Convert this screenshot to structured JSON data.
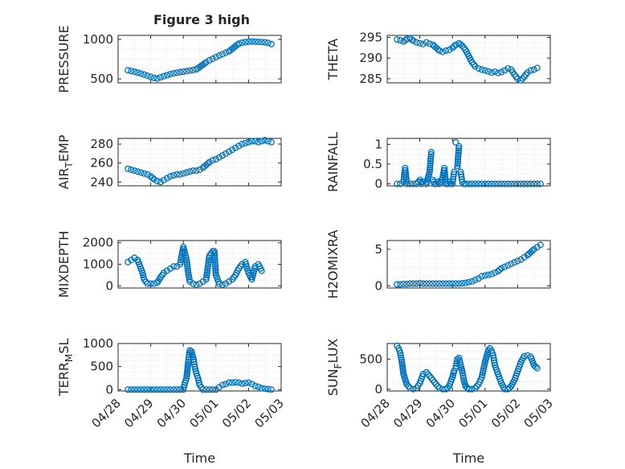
{
  "figure": {
    "title": "Figure 3 high"
  },
  "colors": {
    "marker": "#0072BD",
    "axis": "#262626",
    "grid": "#c8c8c8",
    "minor_grid": "#dedede",
    "background": "#ffffff"
  },
  "chart_data": [
    {
      "id": "pressure",
      "type": "scatter",
      "title": "Figure 3 high",
      "ylabel": "PRESSURE",
      "xlabel": "",
      "x_range": [
        "04/28",
        "05/03"
      ],
      "ylim": [
        450,
        1050
      ],
      "yticks": [
        500,
        1000
      ],
      "xtick_labels": [
        "04/28",
        "04/29",
        "04/30",
        "05/01",
        "05/02",
        "05/03"
      ],
      "show_xtick_labels": false,
      "grid": true,
      "series": [
        {
          "marker": "open-circle",
          "x": [
            0.3,
            0.4,
            0.5,
            0.6,
            0.7,
            0.8,
            0.9,
            1.0,
            1.1,
            1.2,
            1.3,
            1.4,
            1.5,
            1.6,
            1.7,
            1.8,
            1.9,
            2.0,
            2.1,
            2.2,
            2.3,
            2.4,
            2.5,
            2.6,
            2.7,
            2.8,
            2.9,
            3.0,
            3.1,
            3.2,
            3.3,
            3.4,
            3.5,
            3.6,
            3.7,
            3.8,
            3.9,
            4.0,
            4.1,
            4.2,
            4.3,
            4.4,
            4.5,
            4.6,
            4.7
          ],
          "y": [
            610,
            600,
            590,
            580,
            568,
            555,
            540,
            525,
            512,
            505,
            520,
            535,
            548,
            560,
            570,
            578,
            585,
            592,
            598,
            605,
            612,
            620,
            650,
            680,
            710,
            735,
            755,
            775,
            795,
            812,
            830,
            848,
            880,
            915,
            945,
            958,
            965,
            970,
            972,
            970,
            968,
            966,
            962,
            955,
            940
          ]
        }
      ]
    },
    {
      "id": "theta",
      "type": "scatter",
      "ylabel": "THETA",
      "xlabel": "",
      "ylim": [
        284,
        295.5
      ],
      "yticks": [
        285,
        290,
        295
      ],
      "show_xtick_labels": false,
      "grid": true,
      "series": [
        {
          "marker": "open-circle",
          "x": [
            0.3,
            0.4,
            0.5,
            0.6,
            0.7,
            0.8,
            0.9,
            1.0,
            1.1,
            1.2,
            1.3,
            1.4,
            1.5,
            1.6,
            1.7,
            1.8,
            1.9,
            2.0,
            2.1,
            2.2,
            2.3,
            2.4,
            2.5,
            2.6,
            2.7,
            2.8,
            2.9,
            3.0,
            3.1,
            3.2,
            3.3,
            3.4,
            3.5,
            3.6,
            3.7,
            3.8,
            3.9,
            4.0,
            4.1,
            4.2,
            4.3,
            4.4,
            4.5,
            4.6
          ],
          "y": [
            294.5,
            294.3,
            294.0,
            294.6,
            294.8,
            294.2,
            293.8,
            293.6,
            293.4,
            293.8,
            293.5,
            293.2,
            292.5,
            291.8,
            291.5,
            291.8,
            292.0,
            292.5,
            293.2,
            293.6,
            293.0,
            292.0,
            290.5,
            289.0,
            288.0,
            287.5,
            287.2,
            287.0,
            286.8,
            286.5,
            286.7,
            286.4,
            286.6,
            287.0,
            287.5,
            287.2,
            286.0,
            285.0,
            284.6,
            285.5,
            286.5,
            287.0,
            287.2,
            287.6
          ]
        }
      ]
    },
    {
      "id": "air_temp",
      "type": "scatter",
      "ylabel": "AIR_TEMP",
      "xlabel": "",
      "ylim": [
        236,
        286
      ],
      "yticks": [
        240,
        260,
        280
      ],
      "show_xtick_labels": false,
      "grid": true,
      "series": [
        {
          "marker": "open-circle",
          "x": [
            0.3,
            0.4,
            0.5,
            0.6,
            0.7,
            0.8,
            0.9,
            1.0,
            1.1,
            1.2,
            1.3,
            1.4,
            1.5,
            1.6,
            1.7,
            1.8,
            1.9,
            2.0,
            2.1,
            2.2,
            2.3,
            2.4,
            2.5,
            2.6,
            2.7,
            2.8,
            2.9,
            3.0,
            3.1,
            3.2,
            3.3,
            3.4,
            3.5,
            3.6,
            3.7,
            3.8,
            3.9,
            4.0,
            4.1,
            4.2,
            4.3,
            4.4,
            4.5,
            4.6,
            4.7
          ],
          "y": [
            254,
            253,
            252,
            251,
            250,
            249,
            248,
            246,
            243,
            241,
            240,
            242,
            244,
            246,
            247,
            248,
            248,
            249,
            250,
            251,
            252,
            252,
            253,
            255,
            258,
            261,
            263,
            264,
            266,
            268,
            270,
            272,
            274,
            276,
            278,
            280,
            281,
            282,
            283,
            283,
            282,
            283,
            284,
            283,
            282
          ]
        }
      ]
    },
    {
      "id": "rainfall",
      "type": "scatter",
      "ylabel": "RAINFALL",
      "xlabel": "",
      "ylim": [
        -0.05,
        1.15
      ],
      "yticks": [
        0,
        0.5,
        1
      ],
      "ytick_labels": [
        "0",
        "0.5",
        "1"
      ],
      "show_xtick_labels": false,
      "grid": true,
      "series": [
        {
          "marker": "open-circle",
          "x": [
            0.3,
            0.4,
            0.5,
            0.55,
            0.6,
            0.7,
            0.8,
            0.9,
            0.95,
            1.0,
            1.05,
            1.1,
            1.2,
            1.3,
            1.35,
            1.4,
            1.45,
            1.5,
            1.55,
            1.6,
            1.7,
            1.75,
            1.8,
            1.85,
            1.9,
            1.95,
            2.0,
            2.05,
            2.1,
            2.15,
            2.2,
            2.25,
            2.3,
            2.35,
            2.4,
            2.5,
            2.6,
            2.7,
            2.8,
            2.9,
            3.0,
            3.1,
            3.2,
            3.3,
            3.4,
            3.5,
            3.6,
            3.7,
            3.8,
            3.9,
            4.0,
            4.1,
            4.2,
            4.3,
            4.4,
            4.5,
            4.6,
            4.7
          ],
          "y": [
            0.0,
            0.0,
            0.05,
            0.4,
            0.0,
            0.0,
            0.0,
            0.0,
            0.05,
            0.1,
            0.0,
            0.05,
            0.0,
            0.3,
            0.8,
            0.1,
            0.0,
            0.0,
            0.05,
            0.0,
            0.15,
            0.4,
            0.0,
            0.0,
            0.05,
            0.0,
            0.0,
            0.3,
            1.05,
            0.4,
            0.95,
            0.3,
            0.05,
            0.0,
            0.0,
            0.0,
            0.0,
            0.0,
            0.0,
            0.0,
            0.0,
            0.0,
            0.0,
            0.0,
            0.0,
            0.0,
            0.0,
            0.0,
            0.0,
            0.0,
            0.0,
            0.0,
            0.0,
            0.0,
            0.0,
            0.0,
            0.0,
            0.0
          ]
        }
      ]
    },
    {
      "id": "mixdepth",
      "type": "scatter",
      "ylabel": "MIXDEPTH",
      "xlabel": "",
      "ylim": [
        -100,
        2100
      ],
      "yticks": [
        0,
        1000,
        2000
      ],
      "show_xtick_labels": false,
      "grid": true,
      "series": [
        {
          "marker": "open-circle",
          "x": [
            0.3,
            0.4,
            0.5,
            0.6,
            0.65,
            0.7,
            0.75,
            0.8,
            0.9,
            1.0,
            1.1,
            1.2,
            1.3,
            1.4,
            1.5,
            1.6,
            1.7,
            1.8,
            1.9,
            2.0,
            2.05,
            2.1,
            2.15,
            2.2,
            2.3,
            2.4,
            2.5,
            2.6,
            2.7,
            2.8,
            2.85,
            2.9,
            2.95,
            3.0,
            3.1,
            3.2,
            3.3,
            3.4,
            3.5,
            3.6,
            3.7,
            3.8,
            3.9,
            4.0,
            4.1,
            4.2,
            4.3,
            4.4
          ],
          "y": [
            1100,
            1200,
            1300,
            1200,
            1000,
            800,
            600,
            300,
            100,
            100,
            100,
            150,
            400,
            600,
            700,
            800,
            900,
            900,
            1000,
            1800,
            1500,
            1200,
            600,
            200,
            100,
            50,
            100,
            200,
            300,
            1400,
            1500,
            1600,
            1600,
            500,
            100,
            50,
            100,
            200,
            300,
            500,
            800,
            1000,
            1100,
            600,
            300,
            900,
            1000,
            700
          ]
        }
      ]
    },
    {
      "id": "h2omixra",
      "type": "scatter",
      "ylabel": "H2OMIXRA",
      "xlabel": "",
      "ylim": [
        -0.3,
        6.2
      ],
      "yticks": [
        0,
        5
      ],
      "show_xtick_labels": false,
      "grid": true,
      "series": [
        {
          "marker": "open-circle",
          "x": [
            0.3,
            0.4,
            0.5,
            0.6,
            0.7,
            0.8,
            0.9,
            1.0,
            1.1,
            1.2,
            1.3,
            1.4,
            1.5,
            1.6,
            1.7,
            1.8,
            1.9,
            2.0,
            2.1,
            2.2,
            2.3,
            2.4,
            2.5,
            2.6,
            2.7,
            2.8,
            2.9,
            3.0,
            3.1,
            3.2,
            3.3,
            3.4,
            3.5,
            3.6,
            3.7,
            3.8,
            3.9,
            4.0,
            4.1,
            4.2,
            4.3,
            4.4,
            4.5,
            4.6,
            4.7
          ],
          "y": [
            0.2,
            0.2,
            0.25,
            0.25,
            0.3,
            0.3,
            0.3,
            0.35,
            0.3,
            0.3,
            0.3,
            0.3,
            0.3,
            0.3,
            0.3,
            0.3,
            0.3,
            0.3,
            0.3,
            0.3,
            0.35,
            0.4,
            0.5,
            0.6,
            0.8,
            1.0,
            1.3,
            1.4,
            1.5,
            1.6,
            1.8,
            2.0,
            2.4,
            2.6,
            2.8,
            3.0,
            3.2,
            3.4,
            3.6,
            3.9,
            4.2,
            4.6,
            5.0,
            5.3,
            5.6
          ]
        }
      ]
    },
    {
      "id": "terr_msl",
      "type": "scatter",
      "ylabel": "TERR_MSL",
      "xlabel": "Time",
      "ylim": [
        -30,
        1000
      ],
      "yticks": [
        0,
        500,
        1000
      ],
      "xtick_labels": [
        "04/28",
        "04/29",
        "04/30",
        "05/01",
        "05/02",
        "05/03"
      ],
      "show_xtick_labels": true,
      "grid": true,
      "series": [
        {
          "marker": "open-circle",
          "x": [
            0.3,
            0.4,
            0.5,
            0.6,
            0.7,
            0.8,
            0.9,
            1.0,
            1.1,
            1.2,
            1.3,
            1.4,
            1.5,
            1.6,
            1.7,
            1.8,
            1.9,
            2.0,
            2.05,
            2.1,
            2.15,
            2.2,
            2.25,
            2.3,
            2.35,
            2.4,
            2.45,
            2.5,
            2.6,
            2.7,
            2.8,
            2.9,
            3.0,
            3.1,
            3.2,
            3.3,
            3.4,
            3.5,
            3.6,
            3.7,
            3.8,
            3.9,
            4.0,
            4.1,
            4.2,
            4.3,
            4.4,
            4.5,
            4.6,
            4.7
          ],
          "y": [
            0,
            0,
            0,
            0,
            0,
            0,
            0,
            0,
            0,
            0,
            0,
            0,
            0,
            0,
            0,
            0,
            0,
            0,
            150,
            250,
            600,
            850,
            830,
            700,
            500,
            350,
            250,
            100,
            0,
            0,
            0,
            0,
            0,
            50,
            100,
            120,
            150,
            150,
            160,
            150,
            130,
            140,
            150,
            120,
            80,
            60,
            30,
            20,
            10,
            0
          ]
        }
      ]
    },
    {
      "id": "sun_flux",
      "type": "scatter",
      "ylabel": "SUN_FLUX",
      "xlabel": "Time",
      "ylim": [
        -30,
        760
      ],
      "yticks": [
        0,
        500
      ],
      "xtick_labels": [
        "04/28",
        "04/29",
        "04/30",
        "05/01",
        "05/02",
        "05/03"
      ],
      "show_xtick_labels": true,
      "grid": true,
      "series": [
        {
          "marker": "open-circle",
          "x": [
            0.3,
            0.35,
            0.4,
            0.45,
            0.5,
            0.6,
            0.7,
            0.8,
            0.9,
            1.0,
            1.1,
            1.2,
            1.3,
            1.4,
            1.5,
            1.6,
            1.7,
            1.8,
            1.9,
            2.0,
            2.05,
            2.1,
            2.15,
            2.2,
            2.25,
            2.3,
            2.35,
            2.4,
            2.5,
            2.6,
            2.7,
            2.8,
            2.9,
            3.0,
            3.05,
            3.1,
            3.15,
            3.2,
            3.25,
            3.3,
            3.4,
            3.5,
            3.6,
            3.7,
            3.8,
            3.9,
            4.0,
            4.1,
            4.2,
            4.3,
            4.4,
            4.5,
            4.6
          ],
          "y": [
            720,
            680,
            600,
            450,
            250,
            80,
            20,
            0,
            20,
            100,
            250,
            280,
            220,
            150,
            80,
            20,
            0,
            0,
            50,
            200,
            300,
            350,
            500,
            520,
            400,
            300,
            150,
            50,
            0,
            0,
            20,
            80,
            200,
            450,
            550,
            650,
            680,
            640,
            560,
            400,
            250,
            100,
            0,
            0,
            50,
            150,
            300,
            450,
            550,
            560,
            540,
            400,
            350
          ]
        }
      ]
    }
  ]
}
